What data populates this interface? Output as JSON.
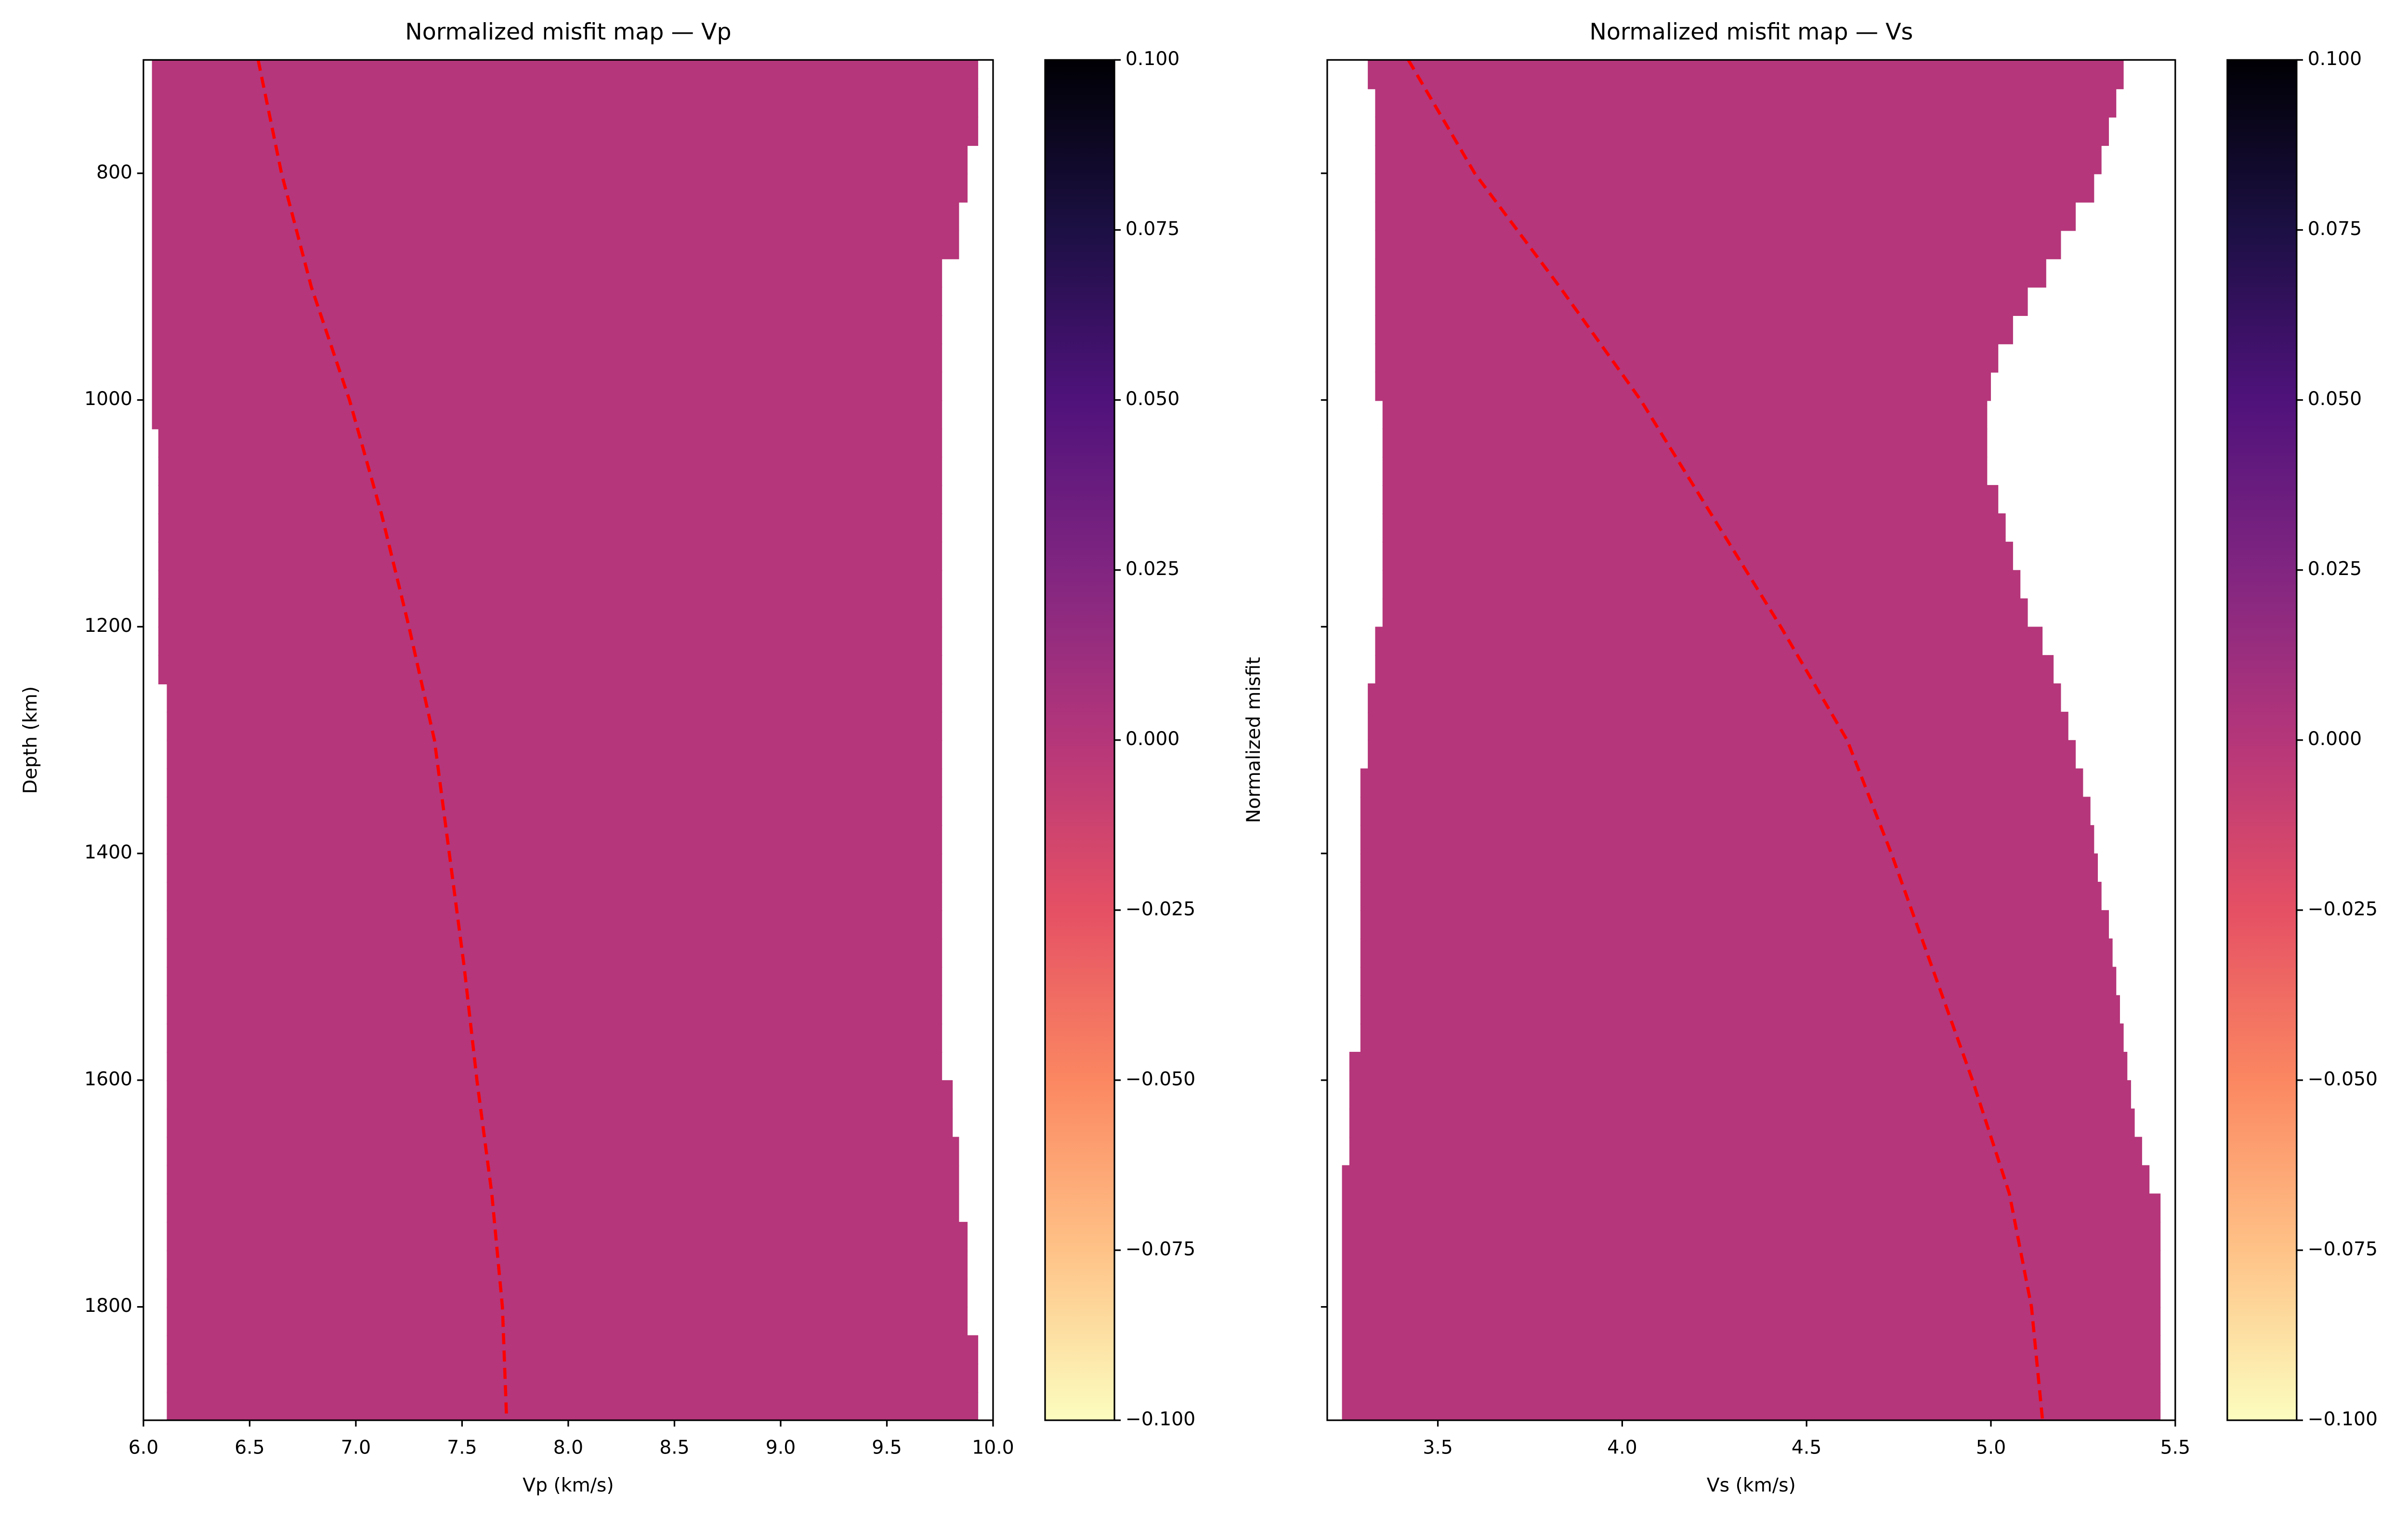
{
  "chart_data": [
    {
      "type": "heatmap",
      "title": "Normalized misfit map — Vp",
      "xlabel": "Vp (km/s)",
      "ylabel": "Depth (km)",
      "xlim": [
        6.0,
        10.0
      ],
      "xticks": [
        {
          "value": 6.0,
          "label": "6.0"
        },
        6.5,
        {
          "value": 7.0,
          "label": "7.0"
        },
        7.5,
        {
          "value": 8.0,
          "label": "8.0"
        },
        8.5,
        {
          "value": 9.0,
          "label": "9.0"
        },
        9.5,
        {
          "value": 10.0,
          "label": "10.0"
        }
      ],
      "ylim": [
        700,
        1900
      ],
      "y_inverted": true,
      "yticks": [
        800,
        1000,
        1200,
        1400,
        1600,
        1800
      ],
      "y_ticklabels": true,
      "depth_bins": [
        700,
        725,
        750,
        775,
        800,
        825,
        850,
        875,
        900,
        925,
        950,
        975,
        1000,
        1025,
        1050,
        1075,
        1100,
        1125,
        1150,
        1175,
        1200,
        1225,
        1250,
        1275,
        1300,
        1325,
        1350,
        1375,
        1400,
        1425,
        1450,
        1475,
        1500,
        1525,
        1550,
        1575,
        1600,
        1625,
        1650,
        1675,
        1700,
        1725,
        1750,
        1775,
        1800,
        1825,
        1850,
        1875,
        1900
      ],
      "fill": {
        "misfit": 0,
        "left": [
          6.04,
          6.04,
          6.04,
          6.04,
          6.04,
          6.04,
          6.04,
          6.04,
          6.04,
          6.04,
          6.04,
          6.04,
          6.04,
          6.07,
          6.07,
          6.07,
          6.07,
          6.07,
          6.07,
          6.07,
          6.07,
          6.07,
          6.11,
          6.11,
          6.11,
          6.11,
          6.11,
          6.11,
          6.11,
          6.11,
          6.11,
          6.11,
          6.11,
          6.11,
          6.11,
          6.11,
          6.11,
          6.11,
          6.11,
          6.11,
          6.11,
          6.11,
          6.11,
          6.11,
          6.11,
          6.11,
          6.11,
          6.11
        ],
        "right": [
          9.93,
          9.93,
          9.93,
          9.88,
          9.88,
          9.84,
          9.84,
          9.76,
          9.76,
          9.76,
          9.76,
          9.76,
          9.76,
          9.76,
          9.76,
          9.76,
          9.76,
          9.76,
          9.76,
          9.76,
          9.76,
          9.76,
          9.76,
          9.76,
          9.76,
          9.76,
          9.76,
          9.76,
          9.76,
          9.76,
          9.76,
          9.76,
          9.76,
          9.76,
          9.76,
          9.76,
          9.81,
          9.81,
          9.84,
          9.84,
          9.84,
          9.88,
          9.88,
          9.88,
          9.88,
          9.93,
          9.93,
          9.93
        ]
      },
      "reference": {
        "color": "#ff0000",
        "depth": [
          700,
          800,
          900,
          1000,
          1100,
          1200,
          1300,
          1400,
          1500,
          1600,
          1700,
          1800,
          1900
        ],
        "values": [
          6.54,
          6.65,
          6.79,
          6.97,
          7.12,
          7.25,
          7.37,
          7.44,
          7.51,
          7.57,
          7.64,
          7.69,
          7.71
        ]
      },
      "colorbar": {
        "label": "Normalized misfit",
        "colormap": "magma_r",
        "lim": [
          -0.1,
          0.1
        ],
        "ticks": [
          {
            "value": -0.1,
            "label": "−0.100"
          },
          {
            "value": -0.075,
            "label": "−0.075"
          },
          {
            "value": -0.05,
            "label": "−0.050"
          },
          {
            "value": -0.025,
            "label": "−0.025"
          },
          {
            "value": 0,
            "label": "0.000"
          },
          {
            "value": 0.025,
            "label": "0.025"
          },
          {
            "value": 0.05,
            "label": "0.050"
          },
          {
            "value": 0.075,
            "label": "0.075"
          },
          {
            "value": 0.1,
            "label": "0.100"
          }
        ]
      }
    },
    {
      "type": "heatmap",
      "title": "Normalized misfit map — Vs",
      "xlabel": "Vs (km/s)",
      "xlim": [
        3.2,
        5.5
      ],
      "xticks": [
        3.5,
        {
          "value": 4.0,
          "label": "4.0"
        },
        4.5,
        {
          "value": 5.0,
          "label": "5.0"
        },
        5.5
      ],
      "ylim": [
        700,
        1900
      ],
      "y_inverted": true,
      "yticks": [
        800,
        1000,
        1200,
        1400,
        1600,
        1800
      ],
      "y_ticklabels": false,
      "depth_bins": [
        700,
        725,
        750,
        775,
        800,
        825,
        850,
        875,
        900,
        925,
        950,
        975,
        1000,
        1025,
        1050,
        1075,
        1100,
        1125,
        1150,
        1175,
        1200,
        1225,
        1250,
        1275,
        1300,
        1325,
        1350,
        1375,
        1400,
        1425,
        1450,
        1475,
        1500,
        1525,
        1550,
        1575,
        1600,
        1625,
        1650,
        1675,
        1700,
        1725,
        1750,
        1775,
        1800,
        1825,
        1850,
        1875,
        1900
      ],
      "fill": {
        "misfit": 0,
        "left": [
          3.31,
          3.33,
          3.33,
          3.33,
          3.33,
          3.33,
          3.33,
          3.33,
          3.33,
          3.33,
          3.33,
          3.33,
          3.35,
          3.35,
          3.35,
          3.35,
          3.35,
          3.35,
          3.35,
          3.35,
          3.33,
          3.33,
          3.31,
          3.31,
          3.31,
          3.29,
          3.29,
          3.29,
          3.29,
          3.29,
          3.29,
          3.29,
          3.29,
          3.29,
          3.29,
          3.26,
          3.26,
          3.26,
          3.26,
          3.24,
          3.24,
          3.24,
          3.24,
          3.24,
          3.24,
          3.24,
          3.24,
          3.24
        ],
        "right": [
          5.36,
          5.34,
          5.32,
          5.3,
          5.28,
          5.23,
          5.19,
          5.15,
          5.1,
          5.06,
          5.02,
          5.0,
          4.99,
          4.99,
          4.99,
          5.02,
          5.04,
          5.06,
          5.08,
          5.1,
          5.14,
          5.17,
          5.19,
          5.21,
          5.23,
          5.25,
          5.27,
          5.28,
          5.29,
          5.3,
          5.32,
          5.33,
          5.34,
          5.35,
          5.36,
          5.37,
          5.38,
          5.39,
          5.41,
          5.43,
          5.46,
          5.46,
          5.46,
          5.46,
          5.46,
          5.46,
          5.46,
          5.46
        ]
      },
      "reference": {
        "color": "#ff0000",
        "depth": [
          700,
          800,
          900,
          1000,
          1100,
          1200,
          1300,
          1400,
          1500,
          1600,
          1700,
          1800,
          1900
        ],
        "values": [
          3.42,
          3.6,
          3.83,
          4.05,
          4.24,
          4.43,
          4.61,
          4.73,
          4.84,
          4.95,
          5.05,
          5.11,
          5.14
        ]
      },
      "colorbar": {
        "label": "Normalized misfit",
        "colormap": "magma_r",
        "lim": [
          -0.1,
          0.1
        ],
        "ticks": [
          {
            "value": -0.1,
            "label": "−0.100"
          },
          {
            "value": -0.075,
            "label": "−0.075"
          },
          {
            "value": -0.05,
            "label": "−0.050"
          },
          {
            "value": -0.025,
            "label": "−0.025"
          },
          {
            "value": 0,
            "label": "0.000"
          },
          {
            "value": 0.025,
            "label": "0.025"
          },
          {
            "value": 0.05,
            "label": "0.050"
          },
          {
            "value": 0.075,
            "label": "0.075"
          },
          {
            "value": 0.1,
            "label": "0.100"
          }
        ]
      }
    }
  ]
}
